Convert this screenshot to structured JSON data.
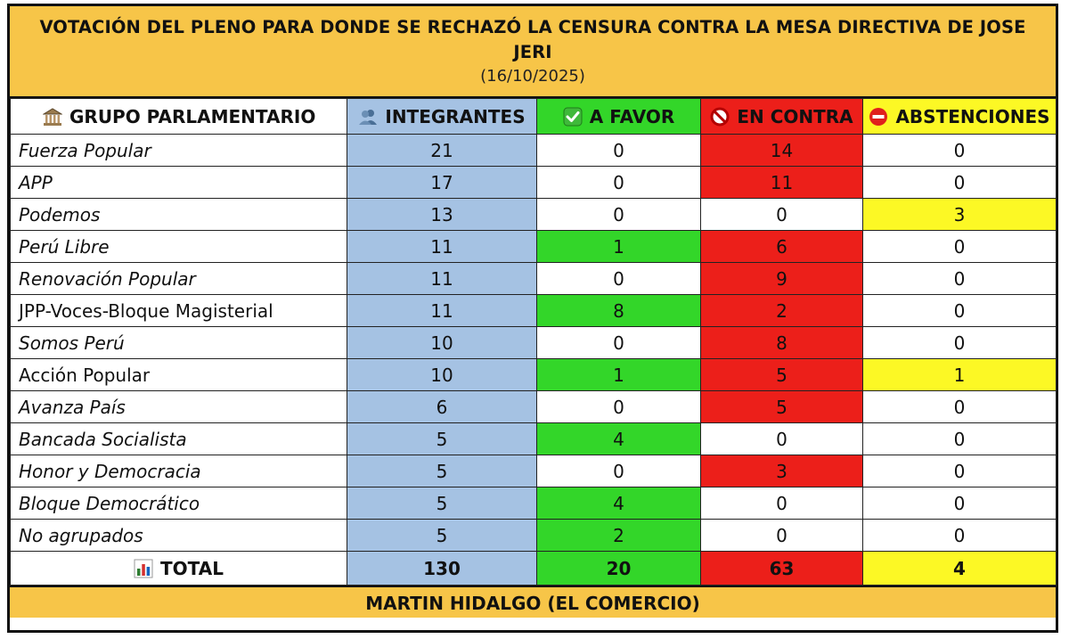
{
  "title": "VOTACIÓN DEL PLENO PARA DONDE SE RECHAZÓ LA CENSURA CONTRA LA MESA DIRECTIVA DE JOSE JERI",
  "date": "(16/10/2025)",
  "headers": {
    "grupo": "GRUPO PARLAMENTARIO",
    "integrantes": "INTEGRANTES",
    "favor": "A FAVOR",
    "contra": "EN CONTRA",
    "abstenciones": "ABSTENCIONES"
  },
  "icons": {
    "grupo": "classical-building-icon",
    "integrantes": "busts-in-silhouette-icon",
    "favor": "check-mark-button-icon",
    "contra": "prohibited-icon",
    "abstenciones": "no-entry-icon",
    "total": "bar-chart-icon"
  },
  "colors": {
    "title_band": "#f7c548",
    "integrantes": "#a5c2e3",
    "favor": "#33d629",
    "contra": "#ec1f1a",
    "abstenciones": "#fcf825"
  },
  "rows": [
    {
      "grupo": "Fuerza Popular",
      "italic": true,
      "integrantes": "21",
      "favor": "0",
      "contra": "14",
      "abstenciones": "0"
    },
    {
      "grupo": "APP",
      "italic": true,
      "integrantes": "17",
      "favor": "0",
      "contra": "11",
      "abstenciones": "0"
    },
    {
      "grupo": "Podemos",
      "italic": true,
      "integrantes": "13",
      "favor": "0",
      "contra": "0",
      "abstenciones": "3"
    },
    {
      "grupo": "Perú Libre",
      "italic": true,
      "integrantes": "11",
      "favor": "1",
      "contra": "6",
      "abstenciones": "0"
    },
    {
      "grupo": "Renovación Popular",
      "italic": true,
      "integrantes": "11",
      "favor": "0",
      "contra": "9",
      "abstenciones": "0"
    },
    {
      "grupo": "JPP-Voces-Bloque Magisterial",
      "italic": false,
      "integrantes": "11",
      "favor": "8",
      "contra": "2",
      "abstenciones": "0"
    },
    {
      "grupo": "Somos Perú",
      "italic": true,
      "integrantes": "10",
      "favor": "0",
      "contra": "8",
      "abstenciones": "0"
    },
    {
      "grupo": "Acción Popular",
      "italic": false,
      "integrantes": "10",
      "favor": "1",
      "contra": "5",
      "abstenciones": "1"
    },
    {
      "grupo": "Avanza País",
      "italic": true,
      "integrantes": "6",
      "favor": "0",
      "contra": "5",
      "abstenciones": "0"
    },
    {
      "grupo": "Bancada Socialista",
      "italic": true,
      "integrantes": "5",
      "favor": "4",
      "contra": "0",
      "abstenciones": "0"
    },
    {
      "grupo": "Honor y Democracia",
      "italic": true,
      "integrantes": "5",
      "favor": "0",
      "contra": "3",
      "abstenciones": "0"
    },
    {
      "grupo": "Bloque Democrático",
      "italic": true,
      "integrantes": "5",
      "favor": "4",
      "contra": "0",
      "abstenciones": "0"
    },
    {
      "grupo": "No agrupados",
      "italic": true,
      "integrantes": "5",
      "favor": "2",
      "contra": "0",
      "abstenciones": "0"
    }
  ],
  "total": {
    "label": "TOTAL",
    "integrantes": "130",
    "favor": "20",
    "contra": "63",
    "abstenciones": "4"
  },
  "footer": "MARTIN HIDALGO (EL COMERCIO)"
}
